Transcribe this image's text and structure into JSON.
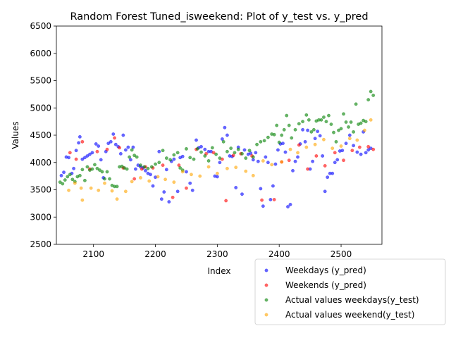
{
  "chart_data": {
    "type": "scatter",
    "title": "Random Forest Tuned_isweekend: Plot of y_test vs. y_pred",
    "xlabel": "Index",
    "ylabel": "Values",
    "xlim": [
      2040,
      2566
    ],
    "ylim": [
      2500,
      6500
    ],
    "xticks": [
      2100,
      2200,
      2300,
      2400,
      2500
    ],
    "yticks": [
      2500,
      3000,
      3500,
      4000,
      4500,
      5000,
      5500,
      6000,
      6500
    ],
    "grid": false,
    "legend_position": "below-right",
    "series": [
      {
        "name": "Weekdays (y_pred)",
        "color": "#0000ff",
        "points": [
          [
            2048,
            3760
          ],
          [
            2052,
            3820
          ],
          [
            2056,
            4100
          ],
          [
            2060,
            4090
          ],
          [
            2065,
            3800
          ],
          [
            2068,
            3890
          ],
          [
            2072,
            4220
          ],
          [
            2076,
            4360
          ],
          [
            2078,
            4470
          ],
          [
            2082,
            4060
          ],
          [
            2086,
            4090
          ],
          [
            2090,
            4120
          ],
          [
            2094,
            4150
          ],
          [
            2098,
            4180
          ],
          [
            2104,
            4340
          ],
          [
            2108,
            4300
          ],
          [
            2112,
            4050
          ],
          [
            2116,
            3720
          ],
          [
            2120,
            4200
          ],
          [
            2124,
            4350
          ],
          [
            2128,
            4380
          ],
          [
            2132,
            4520
          ],
          [
            2136,
            4330
          ],
          [
            2140,
            4290
          ],
          [
            2144,
            4160
          ],
          [
            2148,
            4500
          ],
          [
            2152,
            4230
          ],
          [
            2156,
            4280
          ],
          [
            2160,
            4050
          ],
          [
            2164,
            4280
          ],
          [
            2168,
            3880
          ],
          [
            2172,
            3950
          ],
          [
            2176,
            3920
          ],
          [
            2180,
            3900
          ],
          [
            2184,
            3850
          ],
          [
            2188,
            3800
          ],
          [
            2192,
            3780
          ],
          [
            2196,
            3570
          ],
          [
            2200,
            3730
          ],
          [
            2206,
            4200
          ],
          [
            2210,
            3330
          ],
          [
            2214,
            3460
          ],
          [
            2218,
            3870
          ],
          [
            2222,
            3280
          ],
          [
            2226,
            4020
          ],
          [
            2230,
            4060
          ],
          [
            2236,
            3470
          ],
          [
            2240,
            4090
          ],
          [
            2244,
            4110
          ],
          [
            2250,
            3830
          ],
          [
            2256,
            3620
          ],
          [
            2260,
            3490
          ],
          [
            2266,
            4410
          ],
          [
            2270,
            4270
          ],
          [
            2274,
            4290
          ],
          [
            2280,
            4240
          ],
          [
            2286,
            4200
          ],
          [
            2290,
            4200
          ],
          [
            2296,
            3750
          ],
          [
            2300,
            3740
          ],
          [
            2304,
            4000
          ],
          [
            2308,
            4430
          ],
          [
            2312,
            4640
          ],
          [
            2316,
            4500
          ],
          [
            2320,
            4120
          ],
          [
            2324,
            4110
          ],
          [
            2330,
            3540
          ],
          [
            2334,
            4280
          ],
          [
            2340,
            3420
          ],
          [
            2344,
            4230
          ],
          [
            2350,
            4150
          ],
          [
            2354,
            4170
          ],
          [
            2358,
            4050
          ],
          [
            2362,
            4180
          ],
          [
            2366,
            4020
          ],
          [
            2370,
            3520
          ],
          [
            2374,
            3200
          ],
          [
            2378,
            4100
          ],
          [
            2382,
            4000
          ],
          [
            2386,
            3320
          ],
          [
            2390,
            3570
          ],
          [
            2394,
            3970
          ],
          [
            2398,
            4230
          ],
          [
            2402,
            4340
          ],
          [
            2406,
            4350
          ],
          [
            2410,
            4190
          ],
          [
            2414,
            3190
          ],
          [
            2418,
            3230
          ],
          [
            2422,
            3850
          ],
          [
            2426,
            4020
          ],
          [
            2430,
            4100
          ],
          [
            2434,
            4340
          ],
          [
            2438,
            4600
          ],
          [
            2442,
            4380
          ],
          [
            2446,
            4590
          ],
          [
            2450,
            3880
          ],
          [
            2454,
            4020
          ],
          [
            2458,
            4440
          ],
          [
            2462,
            4570
          ],
          [
            2466,
            4490
          ],
          [
            2470,
            4120
          ],
          [
            2474,
            3470
          ],
          [
            2478,
            3730
          ],
          [
            2482,
            3800
          ],
          [
            2486,
            3800
          ],
          [
            2490,
            4000
          ],
          [
            2494,
            4050
          ],
          [
            2498,
            4210
          ],
          [
            2502,
            4220
          ],
          [
            2508,
            4350
          ],
          [
            2514,
            4500
          ],
          [
            2520,
            4310
          ],
          [
            2526,
            4190
          ],
          [
            2532,
            4150
          ],
          [
            2536,
            4560
          ],
          [
            2540,
            4180
          ],
          [
            2544,
            4230
          ],
          [
            2548,
            4260
          ]
        ]
      },
      {
        "name": "Weekends (y_pred)",
        "color": "#ff0000",
        "points": [
          [
            2062,
            4180
          ],
          [
            2072,
            4060
          ],
          [
            2082,
            4380
          ],
          [
            2094,
            3880
          ],
          [
            2106,
            4200
          ],
          [
            2122,
            4240
          ],
          [
            2134,
            4450
          ],
          [
            2142,
            4270
          ],
          [
            2148,
            3900
          ],
          [
            2166,
            3700
          ],
          [
            2178,
            3880
          ],
          [
            2184,
            3920
          ],
          [
            2196,
            3900
          ],
          [
            2212,
            3950
          ],
          [
            2228,
            3360
          ],
          [
            2238,
            3950
          ],
          [
            2250,
            3530
          ],
          [
            2266,
            4240
          ],
          [
            2282,
            4160
          ],
          [
            2294,
            4180
          ],
          [
            2308,
            4060
          ],
          [
            2314,
            3300
          ],
          [
            2326,
            4130
          ],
          [
            2338,
            4160
          ],
          [
            2356,
            4120
          ],
          [
            2372,
            3310
          ],
          [
            2392,
            3320
          ],
          [
            2404,
            4010
          ],
          [
            2416,
            4040
          ],
          [
            2432,
            4320
          ],
          [
            2446,
            3880
          ],
          [
            2460,
            4120
          ],
          [
            2474,
            3940
          ],
          [
            2490,
            4180
          ],
          [
            2504,
            4040
          ],
          [
            2518,
            4220
          ],
          [
            2530,
            4280
          ],
          [
            2544,
            4290
          ],
          [
            2552,
            4240
          ]
        ]
      },
      {
        "name": "Actual values weekdays(y_test)",
        "color": "#008000",
        "points": [
          [
            2046,
            3640
          ],
          [
            2050,
            3610
          ],
          [
            2054,
            3680
          ],
          [
            2058,
            3740
          ],
          [
            2062,
            3780
          ],
          [
            2066,
            3690
          ],
          [
            2070,
            3650
          ],
          [
            2074,
            3740
          ],
          [
            2078,
            3760
          ],
          [
            2082,
            3870
          ],
          [
            2086,
            3670
          ],
          [
            2090,
            3920
          ],
          [
            2094,
            3860
          ],
          [
            2098,
            3880
          ],
          [
            2102,
            3960
          ],
          [
            2106,
            3890
          ],
          [
            2110,
            3860
          ],
          [
            2114,
            3830
          ],
          [
            2118,
            3700
          ],
          [
            2122,
            3830
          ],
          [
            2126,
            3700
          ],
          [
            2130,
            3580
          ],
          [
            2134,
            3560
          ],
          [
            2138,
            3560
          ],
          [
            2142,
            3920
          ],
          [
            2146,
            3930
          ],
          [
            2150,
            3900
          ],
          [
            2154,
            3880
          ],
          [
            2158,
            4100
          ],
          [
            2162,
            4230
          ],
          [
            2166,
            4130
          ],
          [
            2170,
            4100
          ],
          [
            2176,
            3950
          ],
          [
            2182,
            3920
          ],
          [
            2188,
            3890
          ],
          [
            2194,
            3920
          ],
          [
            2200,
            3970
          ],
          [
            2206,
            4000
          ],
          [
            2212,
            4220
          ],
          [
            2218,
            4080
          ],
          [
            2224,
            4050
          ],
          [
            2230,
            4140
          ],
          [
            2236,
            4180
          ],
          [
            2240,
            3900
          ],
          [
            2244,
            3860
          ],
          [
            2250,
            4250
          ],
          [
            2256,
            4090
          ],
          [
            2262,
            4060
          ],
          [
            2268,
            4250
          ],
          [
            2274,
            4190
          ],
          [
            2280,
            4120
          ],
          [
            2286,
            4030
          ],
          [
            2292,
            4270
          ],
          [
            2298,
            4150
          ],
          [
            2304,
            4080
          ],
          [
            2310,
            4380
          ],
          [
            2316,
            4200
          ],
          [
            2322,
            4260
          ],
          [
            2328,
            4180
          ],
          [
            2334,
            4240
          ],
          [
            2340,
            4160
          ],
          [
            2346,
            4080
          ],
          [
            2352,
            4220
          ],
          [
            2358,
            4100
          ],
          [
            2364,
            4330
          ],
          [
            2370,
            4380
          ],
          [
            2376,
            4400
          ],
          [
            2382,
            4460
          ],
          [
            2388,
            4520
          ],
          [
            2392,
            4510
          ],
          [
            2396,
            4680
          ],
          [
            2400,
            4370
          ],
          [
            2404,
            4500
          ],
          [
            2408,
            4600
          ],
          [
            2412,
            4860
          ],
          [
            2416,
            4680
          ],
          [
            2420,
            4450
          ],
          [
            2426,
            4600
          ],
          [
            2432,
            4710
          ],
          [
            2438,
            4750
          ],
          [
            2444,
            4870
          ],
          [
            2448,
            4780
          ],
          [
            2452,
            4560
          ],
          [
            2456,
            4600
          ],
          [
            2460,
            4760
          ],
          [
            2464,
            4780
          ],
          [
            2468,
            4780
          ],
          [
            2472,
            4830
          ],
          [
            2476,
            4750
          ],
          [
            2480,
            4860
          ],
          [
            2484,
            4700
          ],
          [
            2488,
            4550
          ],
          [
            2492,
            4380
          ],
          [
            2496,
            4590
          ],
          [
            2500,
            4620
          ],
          [
            2504,
            4890
          ],
          [
            2508,
            4740
          ],
          [
            2512,
            4650
          ],
          [
            2516,
            4740
          ],
          [
            2520,
            4560
          ],
          [
            2524,
            5070
          ],
          [
            2528,
            4700
          ],
          [
            2532,
            4720
          ],
          [
            2536,
            4770
          ],
          [
            2540,
            4750
          ],
          [
            2544,
            5150
          ],
          [
            2548,
            5300
          ],
          [
            2552,
            5230
          ]
        ]
      },
      {
        "name": "Actual values weekend(y_test)",
        "color": "#ffa500",
        "points": [
          [
            2060,
            3490
          ],
          [
            2070,
            3620
          ],
          [
            2080,
            3530
          ],
          [
            2082,
            3310
          ],
          [
            2096,
            3530
          ],
          [
            2108,
            3490
          ],
          [
            2118,
            3620
          ],
          [
            2130,
            3480
          ],
          [
            2138,
            3330
          ],
          [
            2152,
            3470
          ],
          [
            2162,
            3650
          ],
          [
            2176,
            3720
          ],
          [
            2190,
            3660
          ],
          [
            2204,
            3740
          ],
          [
            2216,
            3690
          ],
          [
            2230,
            3640
          ],
          [
            2244,
            3830
          ],
          [
            2258,
            3780
          ],
          [
            2272,
            3750
          ],
          [
            2286,
            3920
          ],
          [
            2300,
            3800
          ],
          [
            2316,
            3890
          ],
          [
            2330,
            3910
          ],
          [
            2346,
            3840
          ],
          [
            2358,
            3760
          ],
          [
            2374,
            4030
          ],
          [
            2388,
            3960
          ],
          [
            2404,
            4010
          ],
          [
            2418,
            4240
          ],
          [
            2430,
            4180
          ],
          [
            2444,
            4280
          ],
          [
            2458,
            4330
          ],
          [
            2472,
            4420
          ],
          [
            2486,
            4260
          ],
          [
            2500,
            4300
          ],
          [
            2514,
            4440
          ],
          [
            2526,
            4410
          ],
          [
            2538,
            4590
          ],
          [
            2548,
            4780
          ]
        ]
      }
    ]
  }
}
